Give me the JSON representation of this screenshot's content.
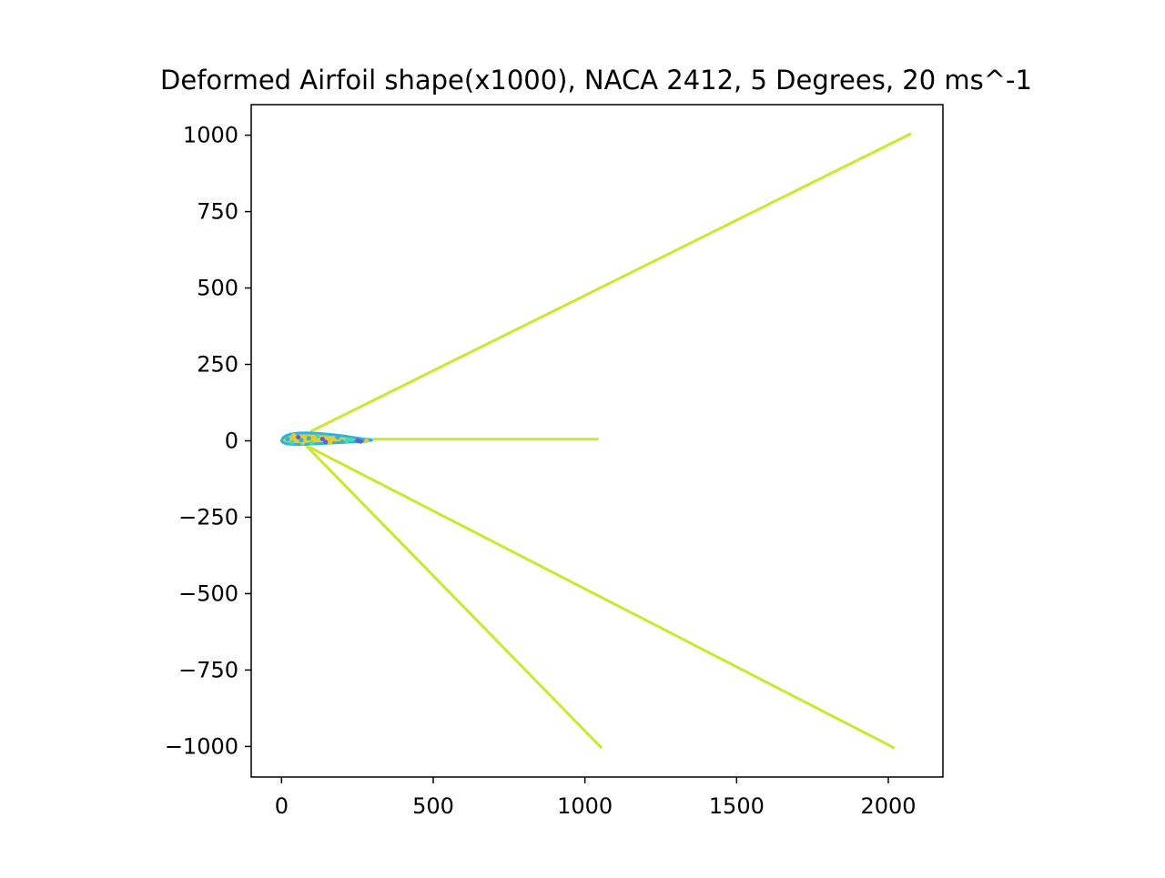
{
  "chart_data": {
    "type": "line",
    "title": "Deformed Airfoil shape(x1000), NACA 2412, 5 Degrees, 20 ms^-1",
    "xlabel": "",
    "ylabel": "",
    "xlim": [
      -100,
      2180
    ],
    "ylim": [
      -1100,
      1100
    ],
    "x_ticks": [
      0,
      500,
      1000,
      1500,
      2000
    ],
    "x_tick_labels": [
      "0",
      "500",
      "1000",
      "1500",
      "2000"
    ],
    "y_ticks": [
      1000,
      750,
      500,
      250,
      0,
      -250,
      -500,
      -750,
      -1000
    ],
    "y_tick_labels": [
      "1000",
      "750",
      "500",
      "250",
      "0",
      "−250",
      "−500",
      "−750",
      "−1000"
    ],
    "grid": false,
    "line_color": "#cde62e",
    "series": [
      {
        "x": [
          95,
          2075
        ],
        "y": [
          30,
          1005
        ]
      },
      {
        "x": [
          300,
          1045
        ],
        "y": [
          5,
          5
        ]
      },
      {
        "x": [
          90,
          2020
        ],
        "y": [
          -20,
          -1005
        ]
      },
      {
        "x": [
          80,
          1055
        ],
        "y": [
          -15,
          -1005
        ]
      }
    ],
    "airfoil": {
      "x": [
        0,
        5,
        15,
        30,
        50,
        80,
        110,
        150,
        190,
        230,
        270,
        300,
        270,
        230,
        190,
        150,
        110,
        80,
        50,
        30,
        15,
        5,
        0
      ],
      "y": [
        0,
        10,
        17,
        22,
        25,
        26,
        25,
        22,
        18,
        12,
        6,
        3,
        -2,
        -4,
        -6,
        -8,
        -10,
        -11,
        -12,
        -11,
        -9,
        -6,
        0
      ],
      "fill_color": "#e8c837",
      "edge_color": "#1fb8e8",
      "speckle_colors": [
        "#1fb8e8",
        "#3ce0b0",
        "#6a5acd",
        "#e8c837"
      ]
    }
  }
}
